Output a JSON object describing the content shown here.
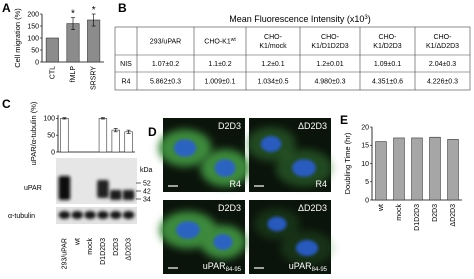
{
  "panel_labels": [
    "A",
    "B",
    "C",
    "D",
    "E"
  ],
  "chart_data": [
    {
      "type": "bar",
      "y_label": "Cell migration (%)",
      "categories": [
        "CTL",
        "fMLP",
        "SRSRY"
      ],
      "values": [
        100,
        160,
        175
      ],
      "errors": [
        0,
        25,
        25
      ],
      "color": "#8c8c8c",
      "ylim": [
        0,
        200
      ],
      "yticks": [
        0,
        50,
        100,
        150,
        200
      ],
      "annotations": [
        {
          "text": "*",
          "category": "fMLP"
        },
        {
          "text": "*",
          "category": "SRSRY"
        }
      ]
    },
    {
      "type": "bar",
      "y_label": "uPAR/α-tubulin (%)",
      "categories": [
        "293/uPAR",
        "wt",
        "mock",
        "D1D2D3",
        "D2D3",
        "ΔD2D3"
      ],
      "values": [
        100,
        0,
        0,
        100,
        65,
        60
      ],
      "errors": [
        2,
        0,
        0,
        2,
        5,
        5
      ],
      "color": "#ffffff",
      "ylim": [
        0,
        110
      ],
      "yticks": [
        0,
        50,
        100
      ]
    },
    {
      "type": "bar",
      "y_label": "Doubling Time (hr)",
      "categories": [
        "wt",
        "mock",
        "D1D2D3",
        "D2D3",
        "ΔD2D3"
      ],
      "values": [
        16,
        17,
        17,
        17.2,
        16.6
      ],
      "color": "#a6a6a6",
      "ylim": [
        0,
        20
      ],
      "yticks": [
        0,
        5,
        10,
        15,
        20
      ]
    }
  ],
  "table": {
    "title": "Mean Fluorescence Intensity (x10",
    "title_sup": "3",
    "title_end": ")",
    "header": [
      [
        "293/uPAR"
      ],
      [
        "CHO-K1"
      ],
      [
        "CHO-",
        "K1/mock"
      ],
      [
        "CHO-",
        "K1/D1D2D3"
      ],
      [
        "CHO-",
        "K1/D2D3"
      ],
      [
        "CHO-",
        "K1/ΔD2D3"
      ]
    ],
    "header_sup": {
      "1": "wt"
    },
    "rows": [
      [
        "NIS",
        "1.07±0.2",
        "1.1±0.2",
        "1.2±0.1",
        "1.2±0.01",
        "1.09±0.1",
        "2.04±0.3"
      ],
      [
        "R4",
        "5.862±0.3",
        "1.009±0.1",
        "1.034±0.5",
        "4.980±0.3",
        "4.351±0.6",
        "4.226±0.3"
      ]
    ]
  },
  "blot": {
    "unit": "kDa",
    "markers": [
      "52",
      "42",
      "34"
    ],
    "rows": [
      "uPAR",
      "α-tubulin"
    ]
  },
  "micrographs": [
    {
      "title": "D2D3",
      "label": "R4"
    },
    {
      "title": "ΔD2D3",
      "label": "R4"
    },
    {
      "title": "D2D3",
      "label": "uPAR",
      "label_sub": "84-95"
    },
    {
      "title": "ΔD2D3",
      "label": "uPAR",
      "label_sub": "84-95"
    }
  ]
}
